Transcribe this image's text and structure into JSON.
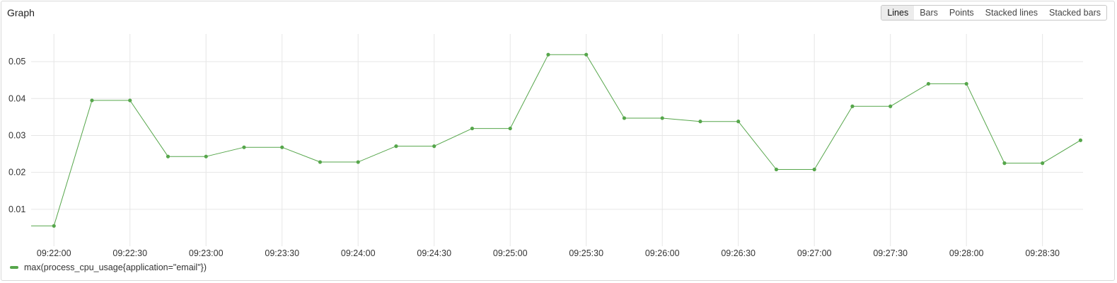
{
  "panel": {
    "title": "Graph",
    "modes": [
      "Lines",
      "Bars",
      "Points",
      "Stacked lines",
      "Stacked bars"
    ],
    "active_mode": "Lines"
  },
  "chart_data": {
    "type": "line",
    "x_tick_labels": [
      "09:22:00",
      "09:22:30",
      "09:23:00",
      "09:23:30",
      "09:24:00",
      "09:24:30",
      "09:25:00",
      "09:25:30",
      "09:26:00",
      "09:26:30",
      "09:27:00",
      "09:27:30",
      "09:28:00",
      "09:28:30"
    ],
    "y_tick_labels": [
      "0.01",
      "0.02",
      "0.03",
      "0.04",
      "0.05"
    ],
    "y_ticks": [
      0.01,
      0.02,
      0.03,
      0.04,
      0.05
    ],
    "xlim": [
      "09:21:51",
      "09:28:46"
    ],
    "ylim": [
      0,
      0.0575
    ],
    "grid": true,
    "series": [
      {
        "name": "max(process_cpu_usage{application=\"email\"})",
        "color": "#56a64b",
        "x": [
          "09:21:51",
          "09:22:00",
          "09:22:15",
          "09:22:30",
          "09:22:45",
          "09:23:00",
          "09:23:15",
          "09:23:30",
          "09:23:45",
          "09:24:00",
          "09:24:15",
          "09:24:30",
          "09:24:45",
          "09:25:00",
          "09:25:15",
          "09:25:30",
          "09:25:45",
          "09:26:00",
          "09:26:15",
          "09:26:30",
          "09:26:45",
          "09:27:00",
          "09:27:15",
          "09:27:30",
          "09:27:45",
          "09:28:00",
          "09:28:15",
          "09:28:30",
          "09:28:45"
        ],
        "values": [
          0.0055,
          0.0055,
          0.0395,
          0.0395,
          0.0243,
          0.0243,
          0.0268,
          0.0268,
          0.0228,
          0.0228,
          0.0271,
          0.0271,
          0.0319,
          0.0319,
          0.0519,
          0.0519,
          0.0347,
          0.0347,
          0.0338,
          0.0338,
          0.0208,
          0.0208,
          0.0379,
          0.0379,
          0.044,
          0.044,
          0.0225,
          0.0225,
          0.0287
        ],
        "markers": [
          false,
          true,
          true,
          true,
          true,
          true,
          true,
          true,
          true,
          true,
          true,
          true,
          true,
          true,
          true,
          true,
          true,
          true,
          true,
          true,
          true,
          true,
          true,
          true,
          true,
          true,
          true,
          true,
          true
        ]
      }
    ],
    "legend_position": "bottom-left"
  }
}
